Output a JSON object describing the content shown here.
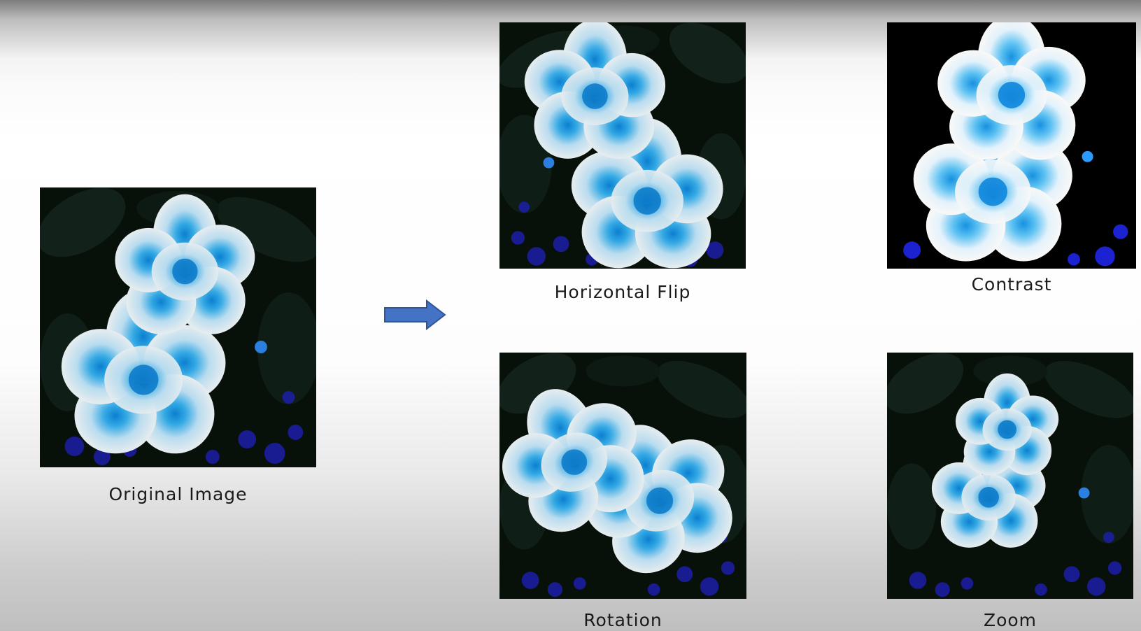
{
  "captions": {
    "original": "Original Image",
    "horizontal_flip": "Horizontal Flip",
    "contrast": "Contrast",
    "rotation": "Rotation",
    "zoom": "Zoom"
  },
  "icons": {
    "arrow": "right-arrow-icon"
  },
  "colors": {
    "arrow_fill": "#4472c4",
    "arrow_stroke": "#2f5597",
    "petal_white": "#eef3f7",
    "petal_blue": "#2fa3df",
    "foliage_dark": "#0a140d",
    "small_flowers": "#1b1ea6"
  }
}
